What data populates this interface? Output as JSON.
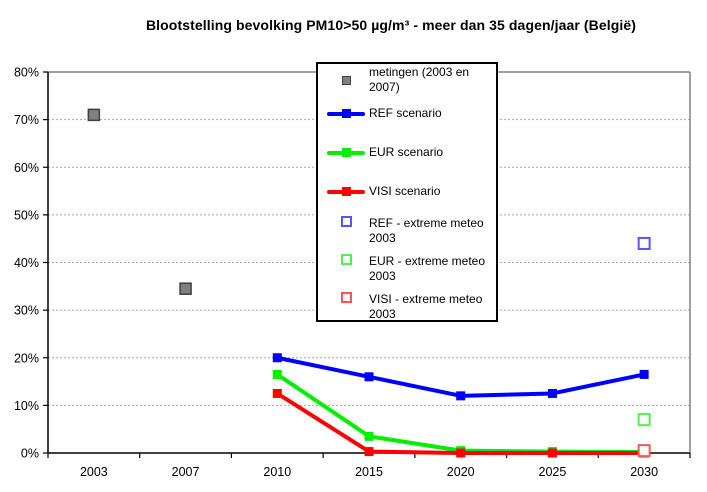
{
  "title": "Blootstelling bevolking PM10>50 µg/m³ - meer dan 35 dagen/jaar (België)",
  "chart_data": {
    "type": "line",
    "title": "Blootstelling bevolking PM10>50 µg/m³ - meer dan 35 dagen/jaar (België)",
    "categories": [
      "2003",
      "2007",
      "2010",
      "2015",
      "2020",
      "2025",
      "2030"
    ],
    "y_tick_labels": [
      "0%",
      "10%",
      "20%",
      "30%",
      "40%",
      "50%",
      "60%",
      "70%",
      "80%"
    ],
    "ylim": [
      0,
      80
    ],
    "y_tick_step": 10,
    "xlabel": "",
    "ylabel": "",
    "grid": "horizontal dashed lines every 10%",
    "legend_position": "inside top-center, boxed",
    "colors": {
      "background": "#FFFFFF",
      "grid": "#A6A6A6",
      "border": "#808080",
      "axis": "#000000"
    },
    "series": [
      {
        "name": "metingen (2003 en 2007)",
        "type": "scatter",
        "marker": "filled-square",
        "color": "#808080",
        "marker_border": "#404040",
        "points": [
          {
            "x": "2003",
            "y": 71
          },
          {
            "x": "2007",
            "y": 34.5
          }
        ]
      },
      {
        "name": "REF scenario",
        "type": "line",
        "marker": "filled-square",
        "color": "#0000FF",
        "points": [
          {
            "x": "2010",
            "y": 20
          },
          {
            "x": "2015",
            "y": 16
          },
          {
            "x": "2020",
            "y": 12
          },
          {
            "x": "2025",
            "y": 12.5
          },
          {
            "x": "2030",
            "y": 16.5
          }
        ]
      },
      {
        "name": "EUR scenario",
        "type": "line",
        "marker": "filled-square",
        "color": "#00EE00",
        "points": [
          {
            "x": "2010",
            "y": 16.5
          },
          {
            "x": "2015",
            "y": 3.5
          },
          {
            "x": "2020",
            "y": 0.5
          },
          {
            "x": "2025",
            "y": 0.3
          },
          {
            "x": "2030",
            "y": 0.2
          }
        ]
      },
      {
        "name": "VISI scenario",
        "type": "line",
        "marker": "filled-square",
        "color": "#FF0000",
        "points": [
          {
            "x": "2010",
            "y": 12.5
          },
          {
            "x": "2015",
            "y": 0.3
          },
          {
            "x": "2020",
            "y": 0
          },
          {
            "x": "2025",
            "y": 0
          },
          {
            "x": "2030",
            "y": 0
          }
        ]
      },
      {
        "name": "REF - extreme meteo 2003",
        "type": "scatter",
        "marker": "open-square",
        "color": "#5555FF",
        "points": [
          {
            "x": "2030",
            "y": 44
          }
        ]
      },
      {
        "name": "EUR - extreme meteo 2003",
        "type": "scatter",
        "marker": "open-square",
        "color": "#55EE55",
        "points": [
          {
            "x": "2030",
            "y": 7
          }
        ]
      },
      {
        "name": "VISI - extreme meteo 2003",
        "type": "scatter",
        "marker": "open-square",
        "color": "#FF5555",
        "points": [
          {
            "x": "2030",
            "y": 0.5
          }
        ]
      }
    ]
  }
}
